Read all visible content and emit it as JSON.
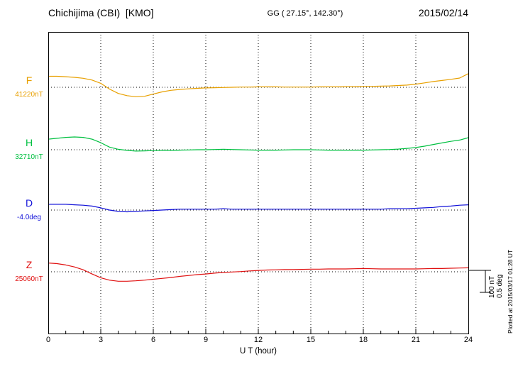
{
  "header": {
    "station": "Chichijima (CBI)  [KMO]",
    "coords": "GG ( 27.15°, 142.30°)",
    "date": "2015/02/14"
  },
  "axis": {
    "x_ticks": [
      "0",
      "3",
      "6",
      "9",
      "12",
      "15",
      "18",
      "21",
      "24"
    ],
    "x_label": "U T (hour)"
  },
  "scale_bar": {
    "nt_label": "100 nT",
    "deg_label": "0.5 deg",
    "nT": 100,
    "deg": 0.5
  },
  "footer_note": "Plotted at 2015/03/17 01:28 UT",
  "chart_data": {
    "type": "line",
    "title": "Chichijima (CBI) [KMO] magnetogram 2015/02/14",
    "xlabel": "U T (hour)",
    "x_range": [
      0,
      24
    ],
    "grid": "dotted vertical every 3 hours; dotted horizontal baseline per trace",
    "legend_position": "left margin labels",
    "x": [
      0,
      0.5,
      1,
      1.5,
      2,
      2.5,
      3,
      3.5,
      4,
      4.5,
      5,
      5.5,
      6,
      6.5,
      7,
      7.5,
      8,
      8.5,
      9,
      9.5,
      10,
      10.5,
      11,
      11.5,
      12,
      12.5,
      13,
      13.5,
      14,
      14.5,
      15,
      15.5,
      16,
      16.5,
      17,
      17.5,
      18,
      18.5,
      19,
      19.5,
      20,
      20.5,
      21,
      21.5,
      22,
      22.5,
      23,
      23.5,
      24
    ],
    "series": [
      {
        "name": "F",
        "label": "F",
        "unit": "nT",
        "baseline_label": "41220nT",
        "baseline_value": 41220,
        "scale_per_bar": 100,
        "color": "#E8A000",
        "offsets": [
          50,
          50,
          48,
          45,
          41,
          33,
          18,
          -8,
          -28,
          -38,
          -43,
          -41,
          -31,
          -21,
          -14,
          -10,
          -7,
          -5,
          -3,
          -2,
          -1,
          0,
          1,
          1,
          2,
          2,
          2,
          1,
          1,
          1,
          1,
          2,
          2,
          2,
          3,
          3,
          4,
          4,
          5,
          6,
          8,
          10,
          14,
          20,
          26,
          31,
          36,
          42,
          62
        ]
      },
      {
        "name": "H",
        "label": "H",
        "unit": "nT",
        "baseline_label": "32710nT",
        "baseline_value": 32710,
        "scale_per_bar": 100,
        "color": "#00C040",
        "offsets": [
          48,
          52,
          56,
          58,
          56,
          48,
          32,
          12,
          2,
          -3,
          -6,
          -5,
          -4,
          -3,
          -3,
          -2,
          -1,
          0,
          0,
          1,
          2,
          1,
          0,
          -1,
          -2,
          -2,
          -2,
          -1,
          0,
          0,
          0,
          -1,
          -2,
          -2,
          -2,
          -2,
          -2,
          -1,
          0,
          1,
          3,
          6,
          10,
          16,
          24,
          31,
          38,
          44,
          55
        ]
      },
      {
        "name": "D",
        "label": "D",
        "unit": "deg",
        "baseline_label": "-4.0deg",
        "baseline_value": -4.0,
        "scale_per_bar": 0.5,
        "color": "#1010D8",
        "offsets": [
          0.13,
          0.13,
          0.13,
          0.12,
          0.11,
          0.09,
          0.05,
          0.0,
          -0.03,
          -0.04,
          -0.03,
          -0.02,
          -0.01,
          0.0,
          0.01,
          0.02,
          0.02,
          0.02,
          0.02,
          0.02,
          0.03,
          0.02,
          0.02,
          0.02,
          0.02,
          0.02,
          0.02,
          0.02,
          0.02,
          0.02,
          0.02,
          0.02,
          0.02,
          0.02,
          0.02,
          0.02,
          0.02,
          0.02,
          0.02,
          0.03,
          0.03,
          0.03,
          0.04,
          0.05,
          0.06,
          0.08,
          0.09,
          0.11,
          0.12
        ]
      },
      {
        "name": "Z",
        "label": "Z",
        "unit": "nT",
        "baseline_label": "25060nT",
        "baseline_value": 25060,
        "scale_per_bar": 100,
        "color": "#E01010",
        "offsets": [
          40,
          37,
          31,
          22,
          9,
          -10,
          -27,
          -38,
          -43,
          -43,
          -41,
          -38,
          -34,
          -30,
          -26,
          -21,
          -17,
          -13,
          -10,
          -6,
          -3,
          -1,
          1,
          4,
          6,
          8,
          9,
          10,
          10,
          11,
          12,
          12,
          13,
          13,
          13,
          14,
          15,
          14,
          13,
          13,
          13,
          13,
          13,
          14,
          15,
          15,
          16,
          17,
          18
        ]
      }
    ]
  }
}
